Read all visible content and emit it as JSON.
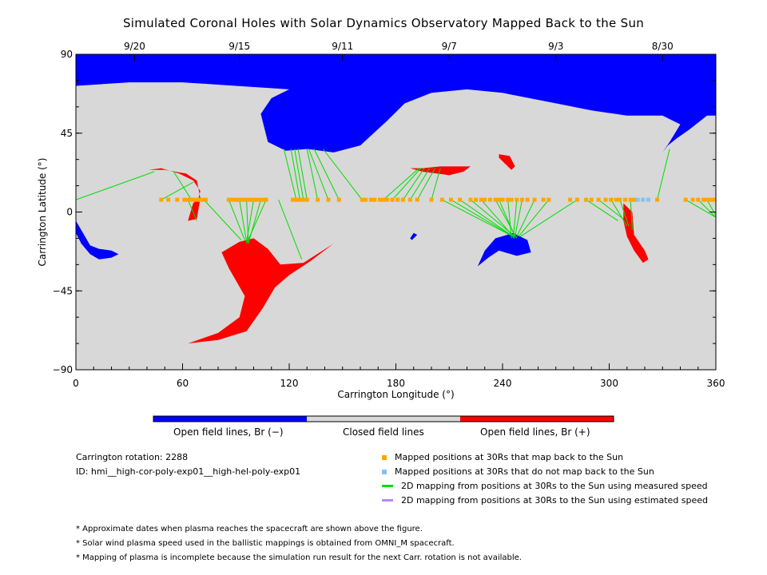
{
  "title": "Simulated Coronal Holes with Solar Dynamics Observatory Mapped Back to the Sun",
  "colors": {
    "open_negative": "#0000ff",
    "closed": "#d8d8d8",
    "open_positive": "#ff0000",
    "mapped": "#ffa500",
    "not_mapped": "#87c1f0",
    "measured_line": "#00dd00",
    "estimated_line": "#bb88ee"
  },
  "colorbar": {
    "labels": [
      "Open field lines, Br (−)",
      "Closed field lines",
      "Open field lines, Br (+)"
    ]
  },
  "info": {
    "rotation": "Carrington rotation: 2288",
    "id": "ID: hmi__high-cor-poly-exp01__high-hel-poly-exp01"
  },
  "legend": [
    {
      "label": "Mapped positions at 30Rs that map back to the Sun",
      "icon": "square",
      "color": "#ffa500"
    },
    {
      "label": "Mapped positions at 30Rs that do not map back to the Sun",
      "icon": "square",
      "color": "#87c1f0"
    },
    {
      "label": "2D mapping from positions at 30Rs to the Sun using measured speed",
      "icon": "line",
      "color": "#00dd00"
    },
    {
      "label": "2D mapping from positions at 30Rs to the Sun using estimated speed",
      "icon": "line",
      "color": "#bb88ee"
    }
  ],
  "notes": [
    "* Approximate dates when plasma reaches the spacecraft are shown above the figure.",
    "* Solar wind plasma speed used in the ballistic mappings is obtained from OMNI_M spacecraft.",
    "* Mapping of plasma is incomplete because the simulation run result for the next Carr. rotation is not available."
  ],
  "chart_data": {
    "type": "map",
    "xlabel": "Carrington Longitude (°)",
    "ylabel": "Carrington Latitude (°)",
    "xlim": [
      0,
      360
    ],
    "ylim": [
      -90,
      90
    ],
    "xticks": [
      0,
      60,
      120,
      180,
      240,
      300,
      360
    ],
    "yticks": [
      -90,
      -45,
      0,
      45,
      90
    ],
    "ytick_labels": [
      "−90",
      "−45",
      "0",
      "45",
      "90"
    ],
    "top_axis": {
      "ticks": [
        {
          "lon": 33,
          "label": "9/20"
        },
        {
          "lon": 92,
          "label": "9/15"
        },
        {
          "lon": 150,
          "label": "9/11"
        },
        {
          "lon": 210,
          "label": "9/7"
        },
        {
          "lon": 270,
          "label": "9/3"
        },
        {
          "lon": 330,
          "label": "8/30"
        }
      ]
    },
    "mapped_latitude": 7,
    "mapped_positions": [
      48,
      52,
      57,
      61,
      63,
      65,
      67,
      69,
      70,
      72,
      73,
      86,
      88,
      90,
      92,
      94,
      96,
      98,
      100,
      102,
      104,
      106,
      107,
      122,
      124,
      126,
      128,
      130,
      136,
      142,
      148,
      161,
      163,
      166,
      168,
      171,
      173,
      175,
      178,
      181,
      184,
      188,
      192,
      200,
      206,
      211,
      216,
      222,
      225,
      228,
      230,
      233,
      236,
      238,
      240,
      243,
      245,
      248,
      251,
      254,
      258,
      263,
      266,
      278,
      282,
      287,
      290,
      294,
      298,
      301,
      304,
      306,
      309,
      312,
      314,
      327,
      343,
      347,
      350,
      353,
      355,
      357,
      359
    ],
    "not_mapped_positions": [
      316,
      319,
      322
    ],
    "mapping_lines": [
      [
        0,
        7,
        44,
        23
      ],
      [
        48,
        7,
        66,
        17
      ],
      [
        65,
        7,
        55,
        23
      ],
      [
        63,
        7,
        68,
        -5
      ],
      [
        72,
        7,
        93,
        -16
      ],
      [
        86,
        7,
        95,
        -16
      ],
      [
        92,
        7,
        96,
        -17
      ],
      [
        96,
        7,
        97,
        -18
      ],
      [
        100,
        7,
        96,
        -17
      ],
      [
        104,
        7,
        97,
        -18
      ],
      [
        107,
        7,
        96,
        -18
      ],
      [
        114,
        7,
        127,
        -27
      ],
      [
        124,
        7,
        117,
        36
      ],
      [
        126,
        7,
        121,
        36
      ],
      [
        128,
        7,
        123,
        36
      ],
      [
        130,
        7,
        125,
        36
      ],
      [
        136,
        7,
        130,
        36
      ],
      [
        142,
        7,
        131,
        36
      ],
      [
        148,
        7,
        134,
        36
      ],
      [
        161,
        7,
        139,
        36
      ],
      [
        173,
        7,
        193,
        25
      ],
      [
        178,
        7,
        194,
        25
      ],
      [
        184,
        7,
        196,
        25
      ],
      [
        188,
        7,
        199,
        25
      ],
      [
        192,
        7,
        202,
        25
      ],
      [
        200,
        7,
        205,
        25
      ],
      [
        206,
        7,
        246,
        -14
      ],
      [
        211,
        7,
        246,
        -14
      ],
      [
        216,
        7,
        246,
        -14
      ],
      [
        222,
        7,
        247,
        -14
      ],
      [
        228,
        7,
        247,
        -15
      ],
      [
        236,
        7,
        248,
        -15
      ],
      [
        238,
        7,
        247,
        -14
      ],
      [
        243,
        7,
        245,
        -15
      ],
      [
        248,
        7,
        246,
        -15
      ],
      [
        251,
        7,
        247,
        -14
      ],
      [
        258,
        7,
        248,
        -14
      ],
      [
        266,
        7,
        249,
        -14
      ],
      [
        282,
        7,
        250,
        -14
      ],
      [
        287,
        7,
        305,
        -5
      ],
      [
        294,
        7,
        308,
        -4
      ],
      [
        301,
        7,
        310,
        -8
      ],
      [
        306,
        7,
        311,
        -8
      ],
      [
        312,
        7,
        313,
        -10
      ],
      [
        327,
        7,
        334,
        36
      ],
      [
        343,
        7,
        360,
        -3
      ],
      [
        350,
        7,
        360,
        -3
      ],
      [
        355,
        7,
        360,
        -2
      ]
    ],
    "regions": [
      {
        "type": "open_negative",
        "name": "north-polar-hole",
        "points": [
          [
            0,
            90
          ],
          [
            360,
            90
          ],
          [
            360,
            55
          ],
          [
            355,
            55
          ],
          [
            345,
            47
          ],
          [
            338,
            42
          ],
          [
            333,
            38
          ],
          [
            330,
            34
          ],
          [
            334,
            40
          ],
          [
            340,
            50
          ],
          [
            330,
            55
          ],
          [
            310,
            55
          ],
          [
            290,
            58
          ],
          [
            270,
            62
          ],
          [
            240,
            68
          ],
          [
            220,
            70
          ],
          [
            200,
            68
          ],
          [
            185,
            62
          ],
          [
            175,
            52
          ],
          [
            160,
            38
          ],
          [
            145,
            34
          ],
          [
            130,
            36
          ],
          [
            118,
            35
          ],
          [
            108,
            40
          ],
          [
            104,
            56
          ],
          [
            110,
            65
          ],
          [
            120,
            70
          ],
          [
            90,
            72
          ],
          [
            60,
            74
          ],
          [
            30,
            74
          ],
          [
            0,
            72
          ]
        ]
      },
      {
        "type": "open_negative",
        "name": "south-hole-west",
        "points": [
          [
            0,
            -5
          ],
          [
            4,
            -12
          ],
          [
            8,
            -19
          ],
          [
            13,
            -21
          ],
          [
            20,
            -22
          ],
          [
            24,
            -24
          ],
          [
            20,
            -26
          ],
          [
            13,
            -27
          ],
          [
            8,
            -24
          ],
          [
            3,
            -18
          ],
          [
            0,
            -12
          ]
        ]
      },
      {
        "type": "open_negative",
        "name": "south-hole-center",
        "points": [
          [
            226,
            -31
          ],
          [
            230,
            -22
          ],
          [
            236,
            -15
          ],
          [
            246,
            -12
          ],
          [
            254,
            -16
          ],
          [
            256,
            -23
          ],
          [
            248,
            -25
          ],
          [
            238,
            -22
          ],
          [
            232,
            -26
          ]
        ]
      },
      {
        "type": "open_negative",
        "name": "small-hole",
        "points": [
          [
            188,
            -15
          ],
          [
            190,
            -12
          ],
          [
            192,
            -13
          ],
          [
            189,
            -16
          ]
        ]
      },
      {
        "type": "open_positive",
        "name": "positive-hole-north-west",
        "points": [
          [
            41,
            24
          ],
          [
            48,
            25
          ],
          [
            58,
            22
          ],
          [
            66,
            18
          ],
          [
            70,
            12
          ],
          [
            69,
            8
          ],
          [
            66,
            5
          ],
          [
            63,
            -5
          ],
          [
            68,
            -4
          ],
          [
            70,
            8
          ],
          [
            68,
            18
          ],
          [
            62,
            22
          ],
          [
            50,
            24
          ]
        ]
      },
      {
        "type": "open_positive",
        "name": "positive-hole-south",
        "points": [
          [
            63,
            -75
          ],
          [
            80,
            -69
          ],
          [
            92,
            -60
          ],
          [
            95,
            -48
          ],
          [
            86,
            -32
          ],
          [
            82,
            -23
          ],
          [
            92,
            -17
          ],
          [
            100,
            -15
          ],
          [
            108,
            -21
          ],
          [
            115,
            -30
          ],
          [
            128,
            -29
          ],
          [
            145,
            -18
          ],
          [
            132,
            -28
          ],
          [
            120,
            -36
          ],
          [
            112,
            -43
          ],
          [
            105,
            -55
          ],
          [
            96,
            -68
          ],
          [
            80,
            -73
          ]
        ]
      },
      {
        "type": "open_positive",
        "name": "positive-hole-north-center",
        "points": [
          [
            188,
            25
          ],
          [
            195,
            25
          ],
          [
            205,
            26
          ],
          [
            215,
            26
          ],
          [
            222,
            26
          ],
          [
            218,
            23
          ],
          [
            210,
            21
          ],
          [
            203,
            22
          ],
          [
            195,
            23
          ]
        ]
      },
      {
        "type": "open_positive",
        "name": "positive-hole-small",
        "points": [
          [
            238,
            33
          ],
          [
            244,
            32
          ],
          [
            247,
            26
          ],
          [
            245,
            24
          ],
          [
            241,
            28
          ],
          [
            238,
            31
          ]
        ]
      },
      {
        "type": "open_positive",
        "name": "positive-hole-east",
        "points": [
          [
            308,
            5
          ],
          [
            313,
            0
          ],
          [
            314,
            -13
          ],
          [
            320,
            -22
          ],
          [
            322,
            -27
          ],
          [
            319,
            -29
          ],
          [
            314,
            -22
          ],
          [
            310,
            -14
          ],
          [
            308,
            -5
          ]
        ]
      }
    ]
  }
}
